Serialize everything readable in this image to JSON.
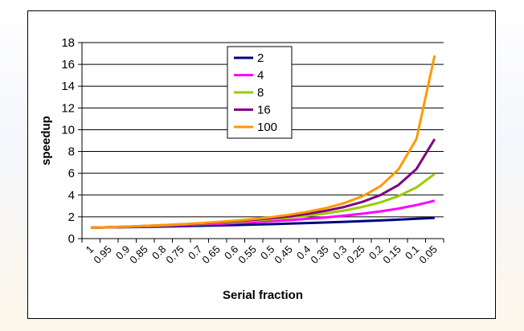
{
  "chart_data": {
    "type": "line",
    "title": "",
    "xlabel": "Serial fraction",
    "ylabel": "speedup",
    "categories": [
      "1",
      "0.95",
      "0.9",
      "0.85",
      "0.8",
      "0.75",
      "0.7",
      "0.65",
      "0.6",
      "0.55",
      "0.5",
      "0.45",
      "0.4",
      "0.35",
      "0.3",
      "0.25",
      "0.2",
      "0.15",
      "0.1",
      "0.05"
    ],
    "ylim": [
      0,
      18
    ],
    "yticks": [
      "0",
      "2",
      "4",
      "6",
      "8",
      "10",
      "12",
      "14",
      "16",
      "18"
    ],
    "grid": true,
    "legend_position": "top-center",
    "series": [
      {
        "name": "2",
        "color": "#000080",
        "values": [
          1,
          1.03,
          1.05,
          1.08,
          1.11,
          1.14,
          1.18,
          1.21,
          1.25,
          1.29,
          1.33,
          1.38,
          1.43,
          1.48,
          1.54,
          1.6,
          1.67,
          1.74,
          1.82,
          1.9
        ]
      },
      {
        "name": "4",
        "color": "#FF00FF",
        "values": [
          1,
          1.04,
          1.08,
          1.13,
          1.18,
          1.23,
          1.29,
          1.36,
          1.43,
          1.51,
          1.6,
          1.7,
          1.82,
          1.95,
          2.11,
          2.29,
          2.5,
          2.76,
          3.08,
          3.48
        ]
      },
      {
        "name": "8",
        "color": "#99CC00",
        "values": [
          1,
          1.04,
          1.09,
          1.15,
          1.21,
          1.28,
          1.36,
          1.45,
          1.54,
          1.66,
          1.78,
          1.93,
          2.11,
          2.32,
          2.58,
          2.91,
          3.33,
          3.9,
          4.71,
          5.93
        ]
      },
      {
        "name": "16",
        "color": "#800080",
        "values": [
          1,
          1.05,
          1.1,
          1.16,
          1.23,
          1.31,
          1.39,
          1.49,
          1.6,
          1.73,
          1.88,
          2.06,
          2.29,
          2.56,
          2.91,
          3.37,
          4,
          4.92,
          6.4,
          9.14
        ]
      },
      {
        "name": "100",
        "color": "#FF9900",
        "values": [
          1,
          1.05,
          1.11,
          1.17,
          1.24,
          1.32,
          1.42,
          1.53,
          1.65,
          1.8,
          1.98,
          2.2,
          2.47,
          2.8,
          3.26,
          3.88,
          4.81,
          6.35,
          9.17,
          16.81
        ]
      }
    ]
  }
}
